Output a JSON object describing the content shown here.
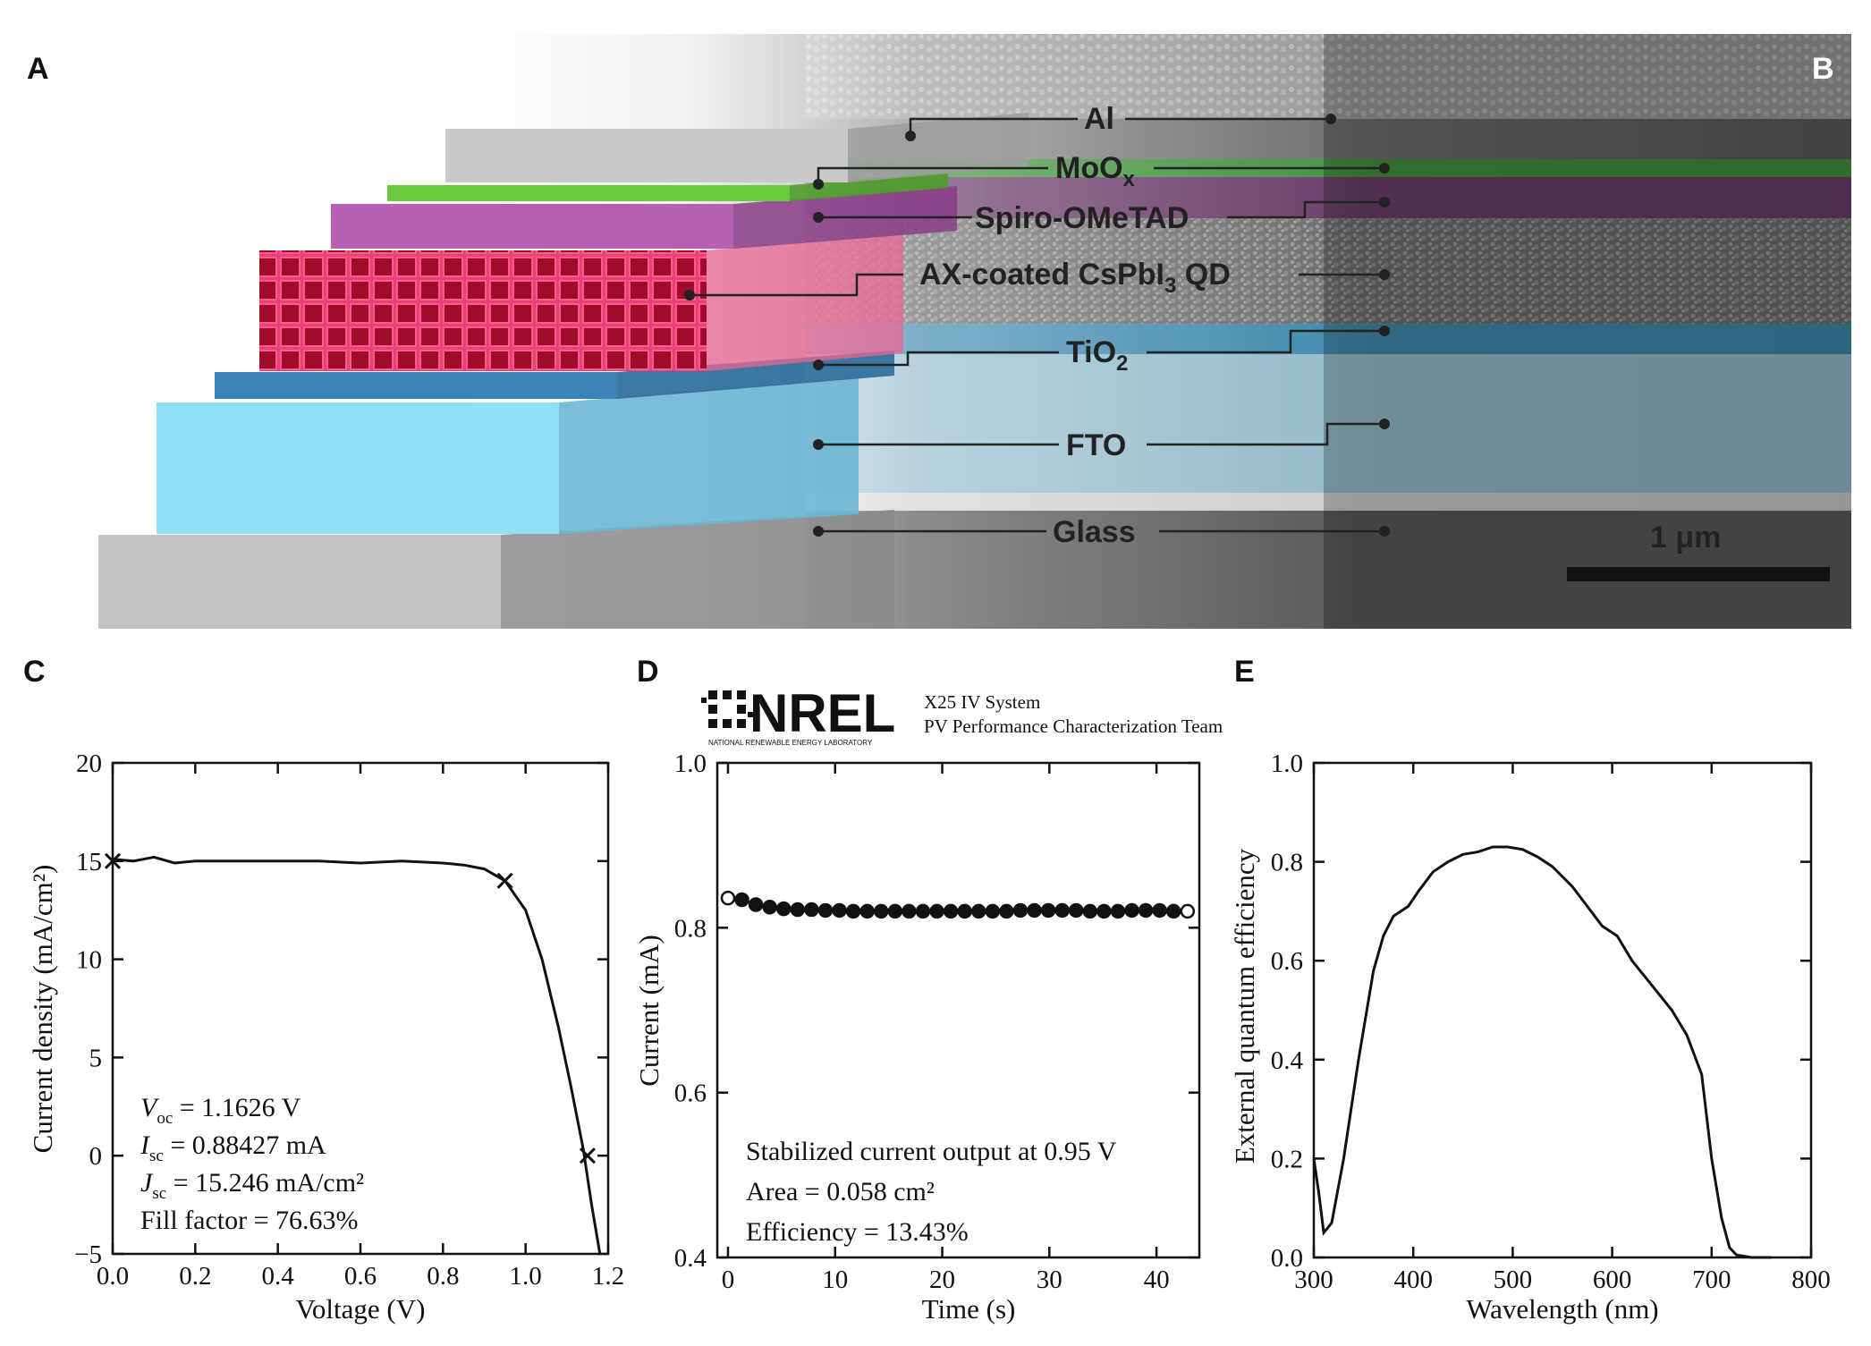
{
  "panels": {
    "a_letter": "A",
    "b_letter": "B",
    "c_letter": "C",
    "d_letter": "D",
    "e_letter": "E"
  },
  "layers": [
    {
      "key": "al",
      "label": "Al",
      "sub": "",
      "color": "#c9c9c9"
    },
    {
      "key": "moox",
      "label": "MoO",
      "sub": "x",
      "color": "#6cc93c"
    },
    {
      "key": "spiro",
      "label": "Spiro-OMeTAD",
      "sub": "",
      "color": "#b65fb3"
    },
    {
      "key": "qd",
      "label": "AX-coated CsPbI",
      "sub": "3",
      "suffix": " QD",
      "color": "#e23a6a"
    },
    {
      "key": "tio2",
      "label": "TiO",
      "sub": "2",
      "color": "#3a83b8"
    },
    {
      "key": "fto",
      "label": "FTO",
      "sub": "",
      "color": "#8fdff6"
    },
    {
      "key": "glass",
      "label": "Glass",
      "sub": "",
      "color": "#c4c4c4"
    }
  ],
  "scale_bar": {
    "label": "1 μm"
  },
  "nrel": {
    "logo_text": "NREL",
    "logo_subtext": "NATIONAL RENEWABLE ENERGY LABORATORY",
    "line1": "X25 IV System",
    "line2": "PV Performance Characterization Team"
  },
  "chart_data": [
    {
      "id": "C",
      "type": "line",
      "xlabel": "Voltage (V)",
      "ylabel": "Current density (mA/cm²)",
      "xlim": [
        0.0,
        1.2
      ],
      "ylim": [
        -5,
        20
      ],
      "xticks": [
        "0.0",
        "0.2",
        "0.4",
        "0.6",
        "0.8",
        "1.0",
        "1.2"
      ],
      "yticks": [
        "−5",
        "0",
        "5",
        "10",
        "15",
        "20"
      ],
      "x": [
        0.0,
        0.05,
        0.1,
        0.15,
        0.2,
        0.3,
        0.4,
        0.5,
        0.6,
        0.7,
        0.8,
        0.85,
        0.9,
        0.95,
        1.0,
        1.04,
        1.08,
        1.11,
        1.14,
        1.16,
        1.18
      ],
      "y": [
        15.1,
        15.0,
        15.2,
        14.9,
        15.0,
        15.0,
        15.0,
        15.0,
        14.9,
        15.0,
        14.9,
        14.8,
        14.6,
        14.0,
        12.5,
        10.0,
        6.5,
        3.5,
        0.3,
        -2.5,
        -5.0
      ],
      "markers": [
        {
          "x": 0.0,
          "y": 15.0
        },
        {
          "x": 0.95,
          "y": 14.0
        },
        {
          "x": 1.15,
          "y": 0.0
        }
      ],
      "annotation": {
        "voc_sym": "V",
        "voc_sub": "oc",
        "voc_val": " = 1.1626 V",
        "isc_sym": "I",
        "isc_sub": "sc",
        "isc_val": " = 0.88427 mA",
        "jsc_sym": "J",
        "jsc_sub": "sc",
        "jsc_val": " = 15.246 mA/cm²",
        "ff": "Fill factor = 76.63%"
      }
    },
    {
      "id": "D",
      "type": "scatter",
      "xlabel": "Time (s)",
      "ylabel": "Current (mA)",
      "xlim": [
        -1,
        44
      ],
      "ylim": [
        0.4,
        1.0
      ],
      "xticks": [
        "0",
        "10",
        "20",
        "30",
        "40"
      ],
      "xtick_values": [
        0,
        10,
        20,
        30,
        40
      ],
      "yticks": [
        "0.4",
        "0.6",
        "0.8",
        "1.0"
      ],
      "ytick_values": [
        0.4,
        0.6,
        0.8,
        1.0
      ],
      "x": [
        0,
        1.3,
        2.6,
        3.9,
        5.2,
        6.5,
        7.8,
        9.1,
        10.4,
        11.7,
        13.0,
        14.3,
        15.6,
        16.9,
        18.2,
        19.5,
        20.8,
        22.1,
        23.4,
        24.7,
        26.0,
        27.3,
        28.6,
        29.9,
        31.2,
        32.5,
        33.8,
        35.1,
        36.4,
        37.7,
        39.0,
        40.3,
        41.6,
        42.9
      ],
      "y": [
        0.836,
        0.834,
        0.828,
        0.825,
        0.823,
        0.822,
        0.822,
        0.821,
        0.821,
        0.82,
        0.82,
        0.82,
        0.82,
        0.82,
        0.82,
        0.82,
        0.82,
        0.82,
        0.82,
        0.82,
        0.82,
        0.821,
        0.821,
        0.821,
        0.821,
        0.821,
        0.82,
        0.82,
        0.82,
        0.821,
        0.821,
        0.821,
        0.82,
        0.82
      ],
      "annotation": {
        "line1": "Stabilized current output at 0.95 V",
        "line2": "Area = 0.058 cm²",
        "line3": "Efficiency = 13.43%"
      }
    },
    {
      "id": "E",
      "type": "line",
      "xlabel": "Wavelength (nm)",
      "ylabel": "External quantum efficiency",
      "xlim": [
        300,
        800
      ],
      "ylim": [
        0.0,
        1.0
      ],
      "xticks": [
        "300",
        "400",
        "500",
        "600",
        "700",
        "800"
      ],
      "xtick_values": [
        300,
        400,
        500,
        600,
        700,
        800
      ],
      "yticks": [
        "0.0",
        "0.2",
        "0.4",
        "0.6",
        "0.8",
        "1.0"
      ],
      "ytick_values": [
        0.0,
        0.2,
        0.4,
        0.6,
        0.8,
        1.0
      ],
      "x": [
        300,
        305,
        310,
        318,
        330,
        345,
        360,
        370,
        380,
        395,
        405,
        420,
        435,
        450,
        465,
        480,
        495,
        510,
        525,
        540,
        560,
        575,
        590,
        605,
        620,
        640,
        660,
        675,
        690,
        700,
        710,
        718,
        725,
        740,
        760
      ],
      "y": [
        0.2,
        0.13,
        0.05,
        0.07,
        0.2,
        0.4,
        0.58,
        0.65,
        0.69,
        0.71,
        0.74,
        0.78,
        0.8,
        0.815,
        0.82,
        0.83,
        0.83,
        0.825,
        0.81,
        0.79,
        0.75,
        0.71,
        0.67,
        0.65,
        0.6,
        0.55,
        0.5,
        0.45,
        0.37,
        0.2,
        0.08,
        0.02,
        0.005,
        0.0,
        0.0
      ]
    }
  ]
}
